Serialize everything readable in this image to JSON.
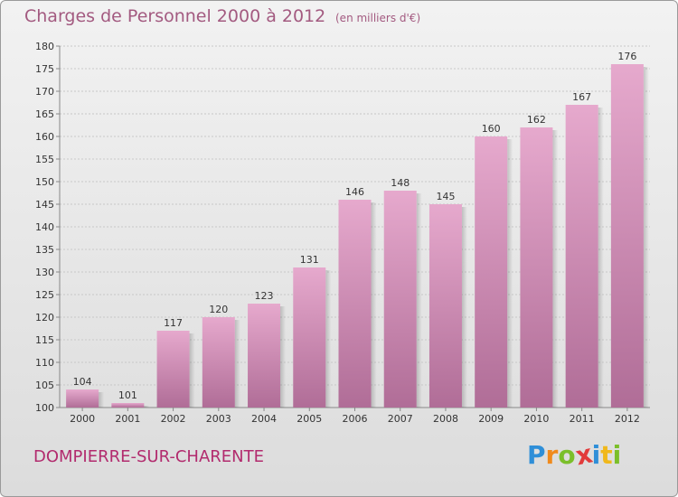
{
  "header": {
    "title": "Charges de Personnel 2000 à 2012",
    "subtitle": "(en milliers d'€)"
  },
  "footer": {
    "commune": "DOMPIERRE-SUR-CHARENTE",
    "logo_letters": [
      "P",
      "r",
      "o",
      "x",
      "i",
      "t",
      "i"
    ],
    "logo_colors": [
      "#2f8fd8",
      "#f08a1c",
      "#7bbf2a",
      "#e23b3b",
      "#2f8fd8",
      "#f0b81c",
      "#7bbf2a"
    ]
  },
  "colors": {
    "bar_top": "#e6a9cd",
    "bar_bottom": "#b06d97",
    "text": "#333333",
    "accent": "#b22b6e"
  },
  "chart_data": {
    "type": "bar",
    "categories": [
      "2000",
      "2001",
      "2002",
      "2003",
      "2004",
      "2005",
      "2006",
      "2007",
      "2008",
      "2009",
      "2010",
      "2011",
      "2012"
    ],
    "values": [
      104,
      101,
      117,
      120,
      123,
      131,
      146,
      148,
      145,
      160,
      162,
      167,
      176
    ],
    "ylim": [
      100,
      180
    ],
    "yticks": [
      100,
      105,
      110,
      115,
      120,
      125,
      130,
      135,
      140,
      145,
      150,
      155,
      160,
      165,
      170,
      175,
      180
    ],
    "grid": true
  }
}
